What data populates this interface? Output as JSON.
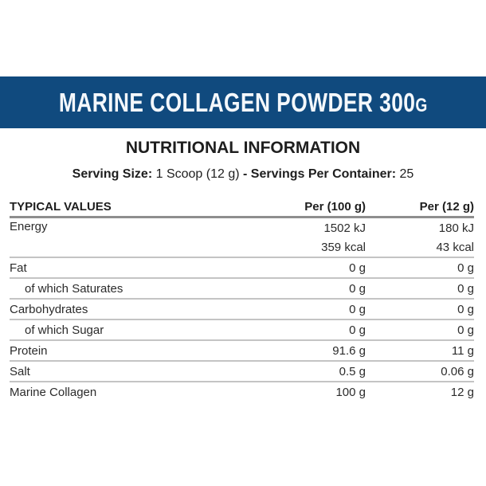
{
  "banner": {
    "title_main": "MARINE COLLAGEN POWDER 300",
    "title_suffix": "G",
    "color": "#104a7e"
  },
  "subtitle": "NUTRITIONAL INFORMATION",
  "serving": {
    "size_label": "Serving Size:",
    "size_value": "1 Scoop (12 g)",
    "separator": "-",
    "servings_label": "Servings Per Container:",
    "servings_value": "25"
  },
  "table": {
    "headers": [
      "TYPICAL VALUES",
      "Per (100 g)",
      "Per (12 g)"
    ],
    "energy": {
      "label": "Energy",
      "per100": [
        "1502 kJ",
        "359 kcal"
      ],
      "per12": [
        "180 kJ",
        "43 kcal"
      ]
    },
    "rows": [
      {
        "label": "Fat",
        "per100": "0 g",
        "per12": "0 g",
        "indent": false
      },
      {
        "label": "of which Saturates",
        "per100": "0 g",
        "per12": "0 g",
        "indent": true
      },
      {
        "label": "Carbohydrates",
        "per100": "0 g",
        "per12": "0 g",
        "indent": false
      },
      {
        "label": "of which Sugar",
        "per100": "0 g",
        "per12": "0 g",
        "indent": true
      },
      {
        "label": "Protein",
        "per100": "91.6 g",
        "per12": "11 g",
        "indent": false
      },
      {
        "label": "Salt",
        "per100": "0.5 g",
        "per12": "0.06 g",
        "indent": false
      },
      {
        "label": "Marine Collagen",
        "per100": "100 g",
        "per12": "12 g",
        "indent": false
      }
    ]
  }
}
